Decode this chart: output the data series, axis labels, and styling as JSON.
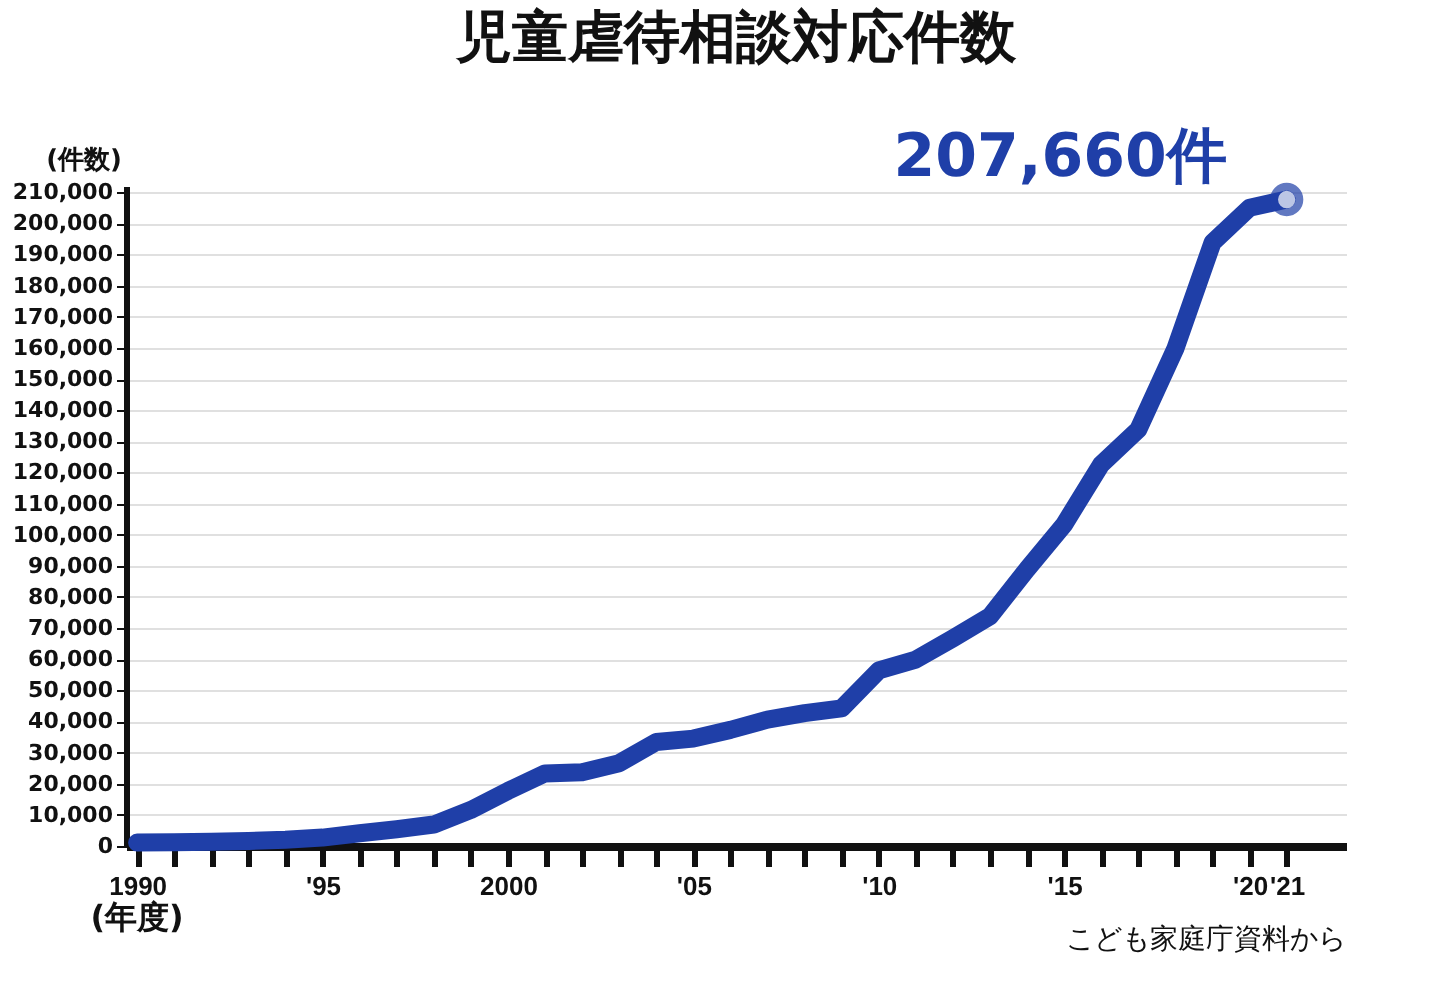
{
  "chart_data": {
    "type": "line",
    "title": "児童虐待相談対応件数",
    "ylabel": "(件数)",
    "xlabel": "(年度)",
    "x": [
      1990,
      1991,
      1992,
      1993,
      1994,
      1995,
      1996,
      1997,
      1998,
      1999,
      2000,
      2001,
      2002,
      2003,
      2004,
      2005,
      2006,
      2007,
      2008,
      2009,
      2010,
      2011,
      2012,
      2013,
      2014,
      2015,
      2016,
      2017,
      2018,
      2019,
      2020,
      2021
    ],
    "series": [
      {
        "color": "#1f3fa8",
        "values": [
          1100,
          1200,
          1400,
          1600,
          2000,
          2700,
          4100,
          5400,
          6900,
          11600,
          17700,
          23300,
          23700,
          26600,
          33400,
          34500,
          37300,
          40600,
          42700,
          44200,
          56400,
          59900,
          66700,
          73800,
          88900,
          103300,
          122600,
          133800,
          159800,
          193800,
          205000,
          207660
        ]
      }
    ],
    "xlim": [
      1989.7,
      2022.6
    ],
    "xticks": [
      {
        "value": 1990,
        "label": "1990"
      },
      {
        "value": 1991,
        "label": null
      },
      {
        "value": 1992,
        "label": null
      },
      {
        "value": 1993,
        "label": null
      },
      {
        "value": 1994,
        "label": null
      },
      {
        "value": 1995,
        "label": "'95"
      },
      {
        "value": 1996,
        "label": null
      },
      {
        "value": 1997,
        "label": null
      },
      {
        "value": 1998,
        "label": null
      },
      {
        "value": 1999,
        "label": null
      },
      {
        "value": 2000,
        "label": "2000"
      },
      {
        "value": 2001,
        "label": null
      },
      {
        "value": 2002,
        "label": null
      },
      {
        "value": 2003,
        "label": null
      },
      {
        "value": 2004,
        "label": null
      },
      {
        "value": 2005,
        "label": "'05"
      },
      {
        "value": 2006,
        "label": null
      },
      {
        "value": 2007,
        "label": null
      },
      {
        "value": 2008,
        "label": null
      },
      {
        "value": 2009,
        "label": null
      },
      {
        "value": 2010,
        "label": "'10"
      },
      {
        "value": 2011,
        "label": null
      },
      {
        "value": 2012,
        "label": null
      },
      {
        "value": 2013,
        "label": null
      },
      {
        "value": 2014,
        "label": null
      },
      {
        "value": 2015,
        "label": "'15"
      },
      {
        "value": 2016,
        "label": null
      },
      {
        "value": 2017,
        "label": null
      },
      {
        "value": 2018,
        "label": null
      },
      {
        "value": 2019,
        "label": null
      },
      {
        "value": 2020,
        "label": "'20"
      },
      {
        "value": 2021,
        "label": "'21"
      }
    ],
    "ylim": [
      0,
      212000
    ],
    "yticks": [
      0,
      {
        "value": 10000,
        "label": "10,000"
      },
      {
        "value": 20000,
        "label": "20,000"
      },
      {
        "value": 30000,
        "label": "30,000"
      },
      {
        "value": 40000,
        "label": "40,000"
      },
      {
        "value": 50000,
        "label": "50,000"
      },
      {
        "value": 60000,
        "label": "60,000"
      },
      {
        "value": 70000,
        "label": "70,000"
      },
      {
        "value": 80000,
        "label": "80,000"
      },
      {
        "value": 90000,
        "label": "90,000"
      },
      {
        "value": 100000,
        "label": "100,000"
      },
      {
        "value": 110000,
        "label": "110,000"
      },
      {
        "value": 120000,
        "label": "120,000"
      },
      {
        "value": 130000,
        "label": "130,000"
      },
      {
        "value": 140000,
        "label": "140,000"
      },
      {
        "value": 150000,
        "label": "150,000"
      },
      {
        "value": 160000,
        "label": "160,000"
      },
      {
        "value": 170000,
        "label": "170,000"
      },
      {
        "value": 180000,
        "label": "180,000"
      },
      {
        "value": 190000,
        "label": "190,000"
      },
      {
        "value": 200000,
        "label": "200,000"
      },
      {
        "value": 210000,
        "label": "210,000"
      }
    ],
    "grid": "y",
    "marker": "none",
    "line_style": "solid",
    "annotations": [
      {
        "text": "207,660件",
        "x": 2021,
        "y": 207660
      },
      "こども家庭庁資料から"
    ]
  }
}
